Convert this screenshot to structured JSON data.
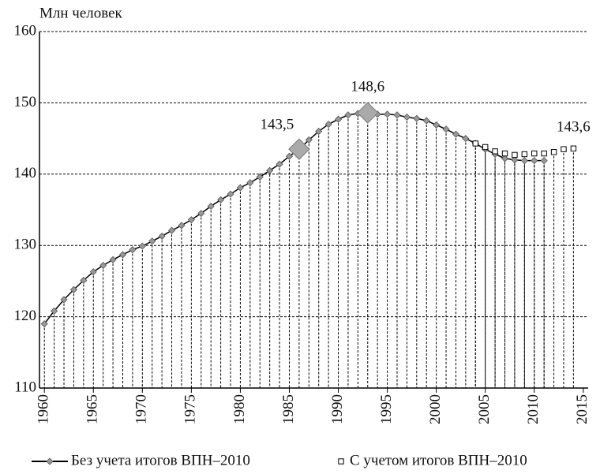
{
  "chart_data": {
    "type": "line",
    "ylabel": "Млн человек",
    "xlim": [
      1959.5,
      2015.5
    ],
    "xticks": [
      1960,
      1965,
      1970,
      1975,
      1980,
      1985,
      1990,
      1995,
      2000,
      2005,
      2010,
      2015
    ],
    "ylim": [
      110,
      160
    ],
    "yticks": [
      110,
      120,
      130,
      140,
      150,
      160
    ],
    "grid": true,
    "legend": "bottom",
    "series": [
      {
        "name": "Без учета итогов ВПН–2010",
        "color": "#999999",
        "marker": "diamond",
        "x": [
          1960,
          1961,
          1962,
          1963,
          1964,
          1965,
          1966,
          1967,
          1968,
          1969,
          1970,
          1971,
          1972,
          1973,
          1974,
          1975,
          1976,
          1977,
          1978,
          1979,
          1980,
          1981,
          1982,
          1983,
          1984,
          1985,
          1986,
          1987,
          1988,
          1989,
          1990,
          1991,
          1992,
          1993,
          1994,
          1995,
          1996,
          1997,
          1998,
          1999,
          2000,
          2001,
          2002,
          2003,
          2004,
          2005,
          2006,
          2007,
          2008,
          2009,
          2010,
          2011
        ],
        "values": [
          119.0,
          120.8,
          122.4,
          123.8,
          125.1,
          126.3,
          127.2,
          128.0,
          128.7,
          129.4,
          129.9,
          130.6,
          131.3,
          132.1,
          132.8,
          133.6,
          134.5,
          135.5,
          136.4,
          137.2,
          138.1,
          138.8,
          139.6,
          140.5,
          141.4,
          142.5,
          143.5,
          144.8,
          146.0,
          147.0,
          147.7,
          148.3,
          148.5,
          148.6,
          148.4,
          148.4,
          148.3,
          148.0,
          147.8,
          147.5,
          146.9,
          146.3,
          145.6,
          145.0,
          144.3,
          143.5,
          142.8,
          142.2,
          142.0,
          141.9,
          141.9,
          141.9
        ]
      },
      {
        "name": "С учетом итогов ВПН–2010",
        "color": "#ffffff",
        "marker": "square",
        "x": [
          2004,
          2005,
          2006,
          2007,
          2008,
          2009,
          2010,
          2011,
          2012,
          2013,
          2014
        ],
        "values": [
          144.3,
          143.8,
          143.2,
          142.9,
          142.7,
          142.8,
          142.9,
          142.9,
          143.1,
          143.5,
          143.6
        ]
      }
    ],
    "annotations": [
      {
        "text": "143,5",
        "x": 1986,
        "y": 143.5,
        "marker": true
      },
      {
        "text": "148,6",
        "x": 1993,
        "y": 148.6,
        "marker": true
      },
      {
        "text": "143,6",
        "x": 2014,
        "y": 143.6,
        "marker": false
      }
    ]
  }
}
